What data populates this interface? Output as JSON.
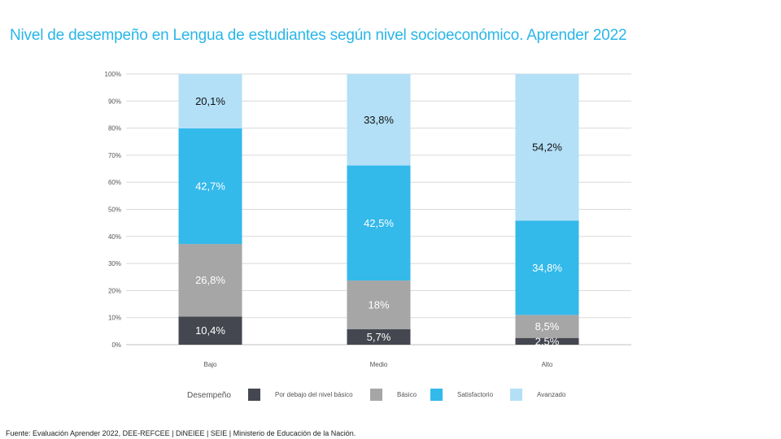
{
  "title": "Nivel de desempeño en Lengua de estudiantes según nivel socioeconómico. Aprender 2022",
  "source": "Fuente: Evaluación Aprender 2022, DEE-REFCEE | DiNEIEE | SEIE | Ministerio de Educación de la Nación.",
  "chart_data": {
    "type": "bar",
    "stacked": true,
    "title": "Nivel de desempeño en Lengua de estudiantes según nivel socioeconómico. Aprender 2022",
    "categories": [
      "Bajo",
      "Medio",
      "Alto"
    ],
    "ylim": [
      0,
      100
    ],
    "yticks": [
      0,
      10,
      20,
      30,
      40,
      50,
      60,
      70,
      80,
      90,
      100
    ],
    "ytick_labels": [
      "0%",
      "10%",
      "20%",
      "30%",
      "40%",
      "50%",
      "60%",
      "70%",
      "80%",
      "90%",
      "100%"
    ],
    "grid": true,
    "legend_title": "Desempeño",
    "legend_position": "bottom",
    "series": [
      {
        "name": "Por debajo del nivel básico",
        "color": "#44474f",
        "label_color": "#ffffff",
        "values": [
          10.4,
          5.7,
          2.5
        ],
        "labels": [
          "10,4%",
          "5,7%",
          "2,5%"
        ]
      },
      {
        "name": "Básico",
        "color": "#a6a6a6",
        "label_color": "#ffffff",
        "values": [
          26.8,
          18,
          8.5
        ],
        "labels": [
          "26,8%",
          "18%",
          "8,5%"
        ]
      },
      {
        "name": "Satisfactorio",
        "color": "#33b9ea",
        "label_color": "#ffffff",
        "values": [
          42.7,
          42.5,
          34.8
        ],
        "labels": [
          "42,7%",
          "42,5%",
          "34,8%"
        ]
      },
      {
        "name": "Avanzado",
        "color": "#b3e0f7",
        "label_color": "#111111",
        "values": [
          20.1,
          33.8,
          54.2
        ],
        "labels": [
          "20,1%",
          "33,8%",
          "54,2%"
        ]
      }
    ]
  }
}
